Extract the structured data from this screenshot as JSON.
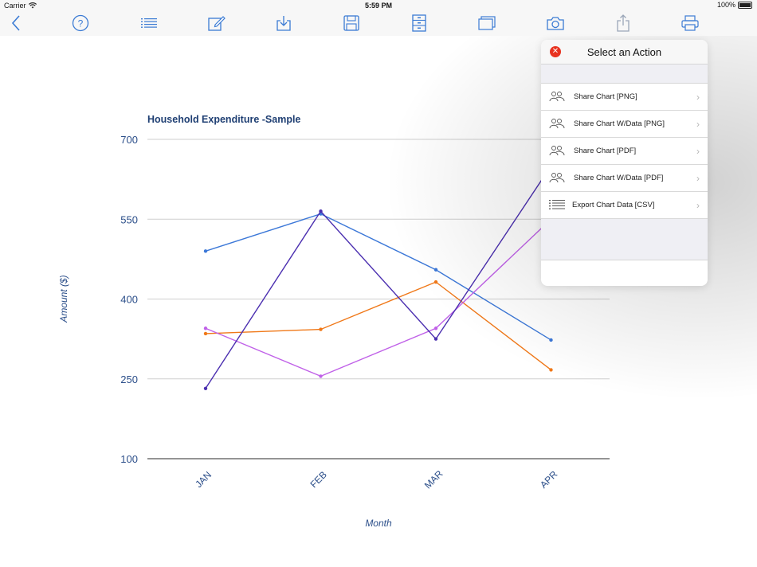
{
  "status_bar": {
    "carrier": "Carrier",
    "time": "5:59 PM",
    "battery": "100%"
  },
  "toolbar": {
    "buttons": [
      "back-icon",
      "help-icon",
      "list-icon",
      "edit-icon",
      "download-icon",
      "save-icon",
      "cabinet-icon",
      "windows-icon",
      "camera-icon",
      "share-icon",
      "print-icon"
    ],
    "accent_color": "#3b7bd4"
  },
  "popover": {
    "title": "Select an Action",
    "items": [
      {
        "label": "Share Chart [PNG]",
        "icon": "people-icon"
      },
      {
        "label": "Share Chart W/Data [PNG]",
        "icon": "people-icon"
      },
      {
        "label": "Share Chart [PDF]",
        "icon": "people-icon"
      },
      {
        "label": "Share Chart W/Data [PDF]",
        "icon": "people-icon"
      },
      {
        "label": "Export Chart Data [CSV]",
        "icon": "list-icon"
      }
    ]
  },
  "chart_data": {
    "type": "line",
    "title": "Household Expenditure -Sample",
    "xlabel": "Month",
    "ylabel": "Amount ($)",
    "categories": [
      "JAN",
      "FEB",
      "MAR",
      "APR"
    ],
    "yticks": [
      100,
      250,
      400,
      550,
      700
    ],
    "ylim": [
      100,
      700
    ],
    "grid": true,
    "series": [
      {
        "color": "#3c78d8",
        "values": [
          490,
          560,
          455,
          323
        ]
      },
      {
        "color": "#f07818",
        "values": [
          335,
          343,
          432,
          267
        ]
      },
      {
        "color": "#c061e8",
        "values": [
          345,
          255,
          345,
          550
        ]
      },
      {
        "color": "#4b2fb0",
        "values": [
          232,
          565,
          325,
          650
        ]
      }
    ]
  }
}
